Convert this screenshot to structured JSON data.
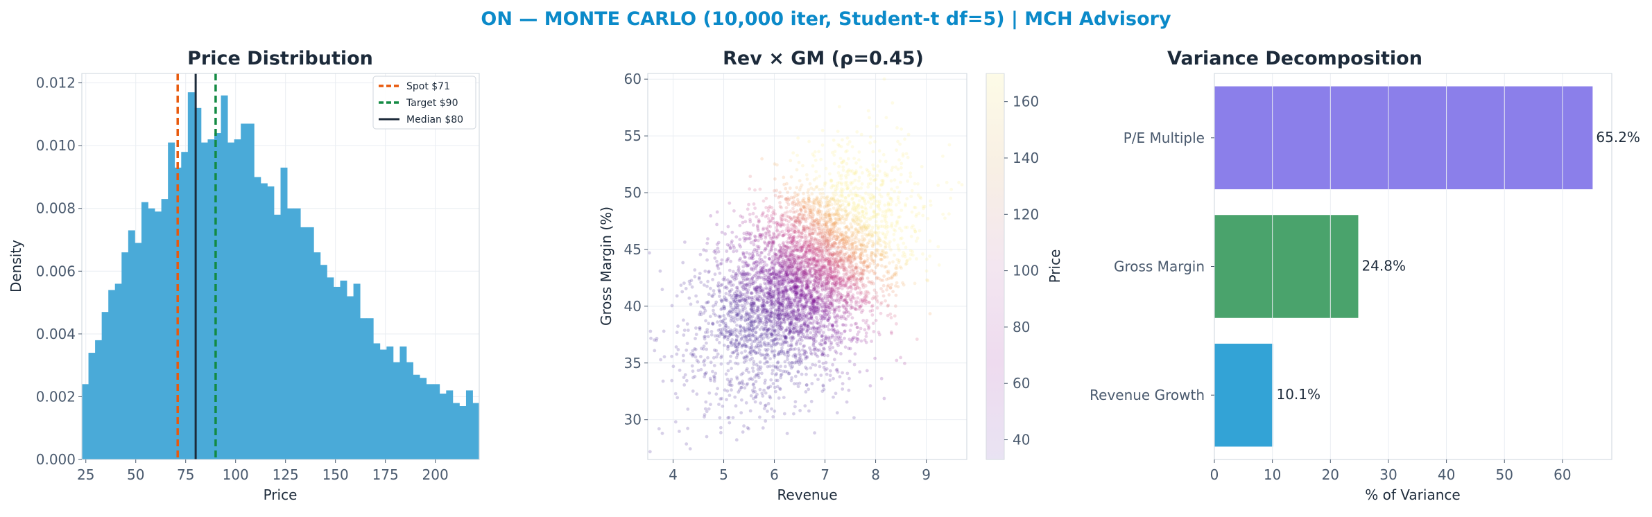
{
  "suptitle": "ON — MONTE CARLO (10,000 iter, Student-t df=5) | MCH Advisory",
  "colors": {
    "title": "#0b8ac9",
    "hist": "#4aaad8",
    "spot": "#e8590c",
    "target": "#138a43",
    "median": "#1c2a3a",
    "bar_pe": "#8b7fea",
    "bar_gm": "#4aa36c",
    "bar_rev": "#33a3d6"
  },
  "chart_data": [
    {
      "type": "bar",
      "title": "Price Distribution",
      "xlabel": "Price",
      "ylabel": "Density",
      "xlim": [
        23,
        222
      ],
      "ylim": [
        0,
        0.0123
      ],
      "xticks": [
        "25",
        "50",
        "75",
        "100",
        "125",
        "150",
        "175",
        "200"
      ],
      "yticks": [
        "0.000",
        "0.002",
        "0.004",
        "0.006",
        "0.008",
        "0.010",
        "0.012"
      ],
      "bin_start": 23,
      "bin_width": 3.317,
      "values": [
        0.0024,
        0.0034,
        0.0038,
        0.0047,
        0.0054,
        0.0056,
        0.0066,
        0.0073,
        0.0069,
        0.0082,
        0.008,
        0.0079,
        0.0083,
        0.0101,
        0.0093,
        0.0098,
        0.0117,
        0.0112,
        0.0101,
        0.0102,
        0.0104,
        0.0116,
        0.0101,
        0.0102,
        0.0107,
        0.0107,
        0.009,
        0.0088,
        0.0087,
        0.0078,
        0.0093,
        0.008,
        0.008,
        0.0074,
        0.0074,
        0.0066,
        0.0062,
        0.0058,
        0.0055,
        0.0057,
        0.0052,
        0.0056,
        0.0045,
        0.0045,
        0.0037,
        0.0035,
        0.0036,
        0.0031,
        0.0036,
        0.0031,
        0.0027,
        0.0026,
        0.0024,
        0.0024,
        0.0021,
        0.0022,
        0.0018,
        0.0017,
        0.0022,
        0.0018,
        0.0015,
        0.0013,
        0.0015,
        0.0013,
        0.0012,
        0.0013,
        0.0011,
        0.0011,
        0.001,
        0.001,
        0.0012,
        0.0011,
        0.0013,
        0.0008,
        0.0012,
        0.0011,
        0.0009,
        0.0009,
        0.0006,
        0.0008,
        0.0005,
        0.0005,
        0.0004,
        0.0005,
        0.0005,
        0.0004,
        0.0004,
        0.0004,
        0.0004,
        0.0003,
        0.0004,
        0.0004,
        0.0004,
        0.0004,
        0.0003,
        0.0003,
        0.0002,
        0.0002,
        0.0003,
        0.0002
      ],
      "reference_lines": [
        {
          "name": "Spot $71",
          "x": 71,
          "style": "dashed",
          "color": "#e8590c"
        },
        {
          "name": "Target $90",
          "x": 90,
          "style": "dashed",
          "color": "#138a43"
        },
        {
          "name": "Median $80",
          "x": 80,
          "style": "solid",
          "color": "#1c2a3a"
        }
      ],
      "legend": "top-right",
      "grid": true
    },
    {
      "type": "scatter",
      "title": "Rev × GM (ρ=0.45)",
      "xlabel": "Revenue",
      "ylabel": "Gross Margin (%)",
      "xlim": [
        3.5,
        9.8
      ],
      "ylim": [
        26.5,
        60.5
      ],
      "xticks": [
        "4",
        "5",
        "6",
        "7",
        "8",
        "9"
      ],
      "yticks": [
        "30",
        "35",
        "40",
        "45",
        "50",
        "55",
        "60"
      ],
      "n_points": 10000,
      "rho": 0.45,
      "x_mean": 6.6,
      "x_sd": 0.95,
      "y_mean": 42.5,
      "y_sd": 4.6,
      "colorbar": {
        "label": "Price",
        "min": 33,
        "max": 170,
        "ticks": [
          "40",
          "60",
          "80",
          "100",
          "120",
          "140",
          "160"
        ]
      },
      "grid": true
    },
    {
      "type": "bar",
      "orientation": "horizontal",
      "title": "Variance Decomposition",
      "xlabel": "% of Variance",
      "xlim": [
        0,
        68.5
      ],
      "xticks": [
        "0",
        "10",
        "20",
        "30",
        "40",
        "50",
        "60"
      ],
      "categories": [
        "P/E Multiple",
        "Gross Margin",
        "Revenue Growth"
      ],
      "values": [
        65.2,
        24.8,
        10.1
      ],
      "labels": [
        "65.2%",
        "24.8%",
        "10.1%"
      ],
      "grid": true
    }
  ]
}
